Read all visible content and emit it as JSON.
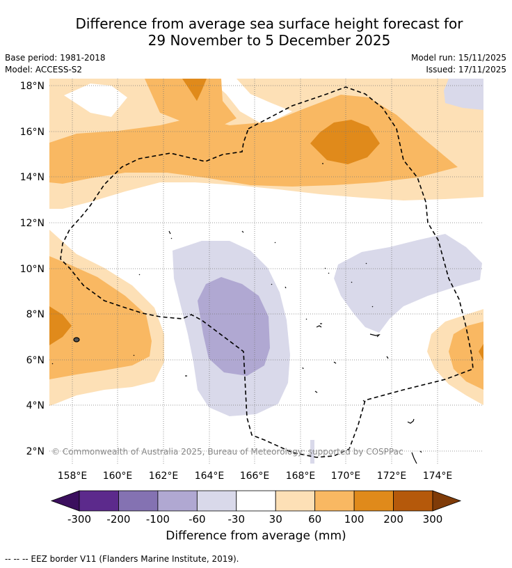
{
  "title_line1": "Difference from average sea surface height forecast for",
  "title_line2": "29 November to 5 December 2025",
  "meta": {
    "base_period": "Base period: 1981-2018",
    "model": "Model: ACCESS-S2",
    "model_run": "Model run: 15/11/2025",
    "issued": "Issued: 17/11/2025"
  },
  "axes": {
    "lat_ticks": [
      "18°N",
      "16°N",
      "14°N",
      "12°N",
      "10°N",
      "8°N",
      "6°N",
      "4°N",
      "2°N"
    ],
    "lon_ticks": [
      "158°E",
      "160°E",
      "162°E",
      "164°E",
      "166°E",
      "168°E",
      "170°E",
      "172°E",
      "174°E"
    ]
  },
  "credit": "© Commonwealth of Australia 2025, Bureau of Meteorology; supported by COSPPac",
  "colorbar": {
    "labels": [
      "-300",
      "-200",
      "-100",
      "-60",
      "-30",
      "30",
      "60",
      "100",
      "200",
      "300"
    ],
    "colors": [
      "#3b0f5e",
      "#5c2a8c",
      "#8472b2",
      "#b0a8d2",
      "#d9d9ea",
      "#ffffff",
      "#fde0b6",
      "#f9b862",
      "#e08a1b",
      "#b5590b",
      "#7f3b08"
    ],
    "label": "Difference from average (mm)"
  },
  "footnote": "--  --  -- EEZ border V11 (Flanders Marine Institute, 2019)."
}
